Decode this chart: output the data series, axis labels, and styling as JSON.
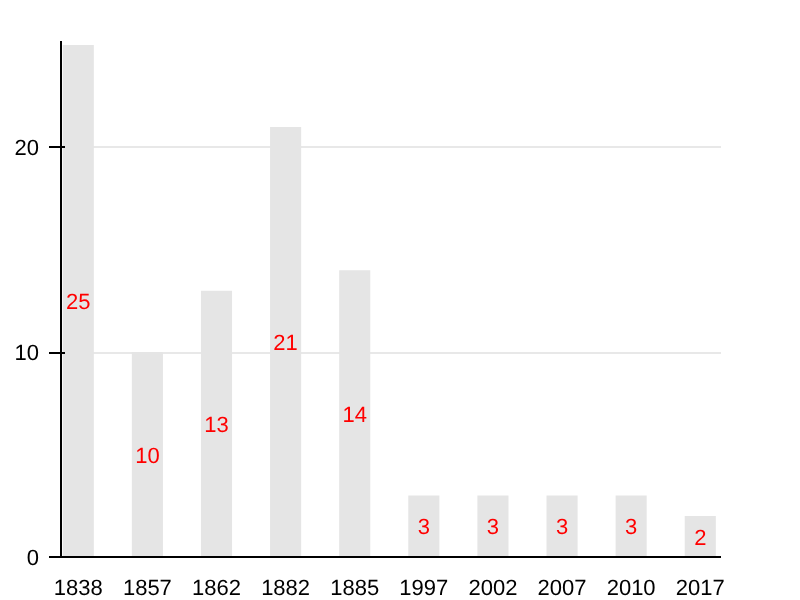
{
  "chart_data": {
    "type": "bar",
    "categories": [
      "1838",
      "1857",
      "1862",
      "1882",
      "1885",
      "1997",
      "2002",
      "2007",
      "2010",
      "2017"
    ],
    "values": [
      25,
      10,
      13,
      21,
      14,
      3,
      3,
      3,
      3,
      2
    ],
    "color": "#e5e5e5",
    "data_labels": true,
    "ylim": [
      0,
      25.2
    ],
    "yticks": [
      0,
      10,
      20
    ],
    "grid": "y"
  }
}
